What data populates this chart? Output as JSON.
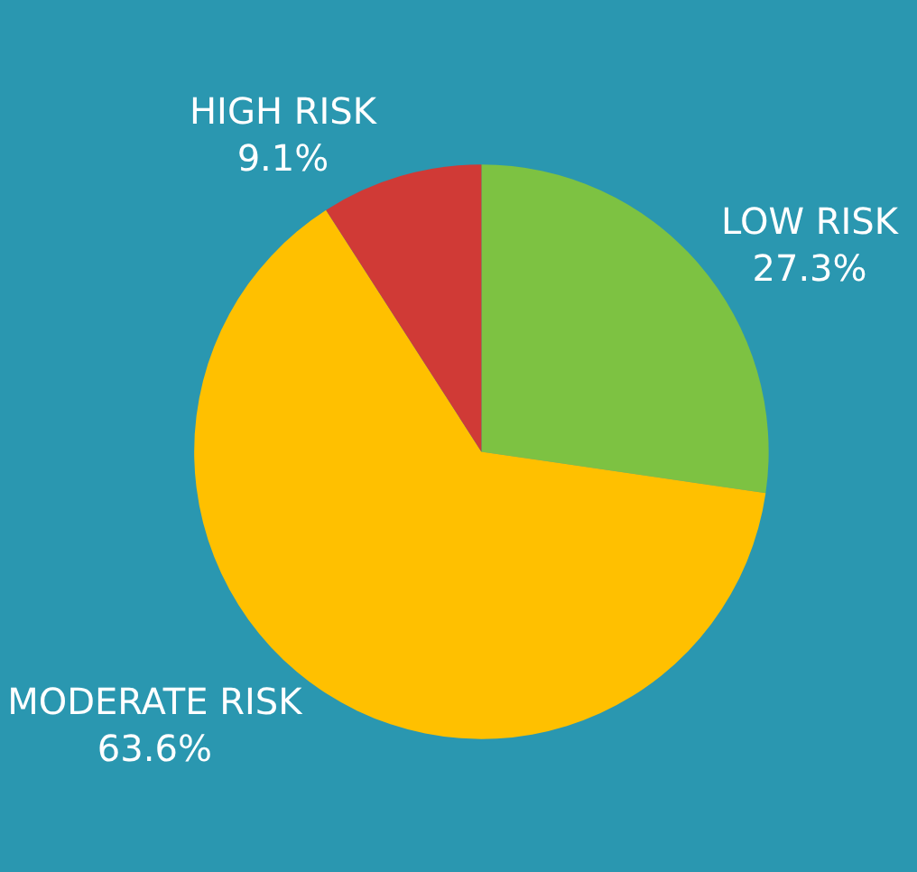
{
  "chart_data": {
    "type": "pie",
    "categories": [
      "LOW RISK",
      "MODERATE RISK",
      "HIGH RISK"
    ],
    "values": [
      27.3,
      63.6,
      9.1
    ],
    "value_labels": [
      "27.3%",
      "63.6%",
      "9.1%"
    ],
    "colors": [
      "#7dc242",
      "#ffc000",
      "#d03a36"
    ],
    "legend": false
  }
}
